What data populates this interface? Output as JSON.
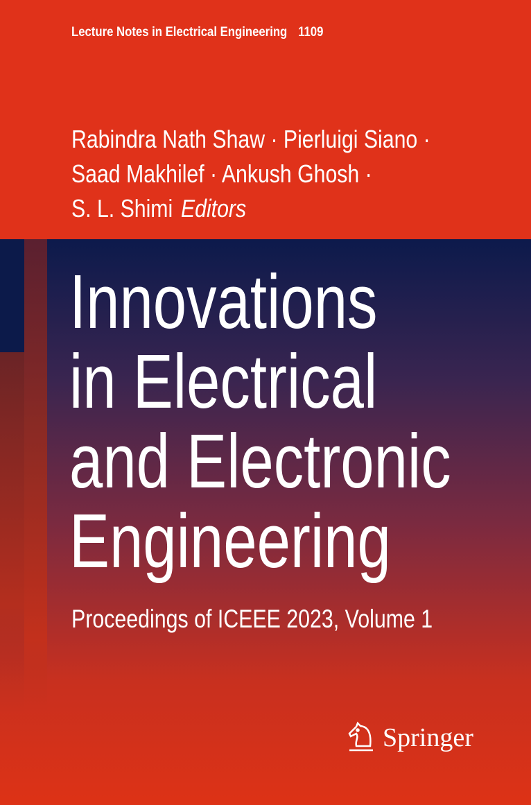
{
  "series": {
    "name": "Lecture Notes in Electrical Engineering",
    "number": "1109"
  },
  "authors": {
    "lines": [
      "Rabindra Nath Shaw · Pierluigi Siano ·",
      "Saad Makhilef · Ankush Ghosh ·",
      "S. L. Shimi"
    ],
    "role": "Editors"
  },
  "title": {
    "lines": [
      "Innovations",
      "in Electrical",
      "and Electronic",
      "Engineering"
    ]
  },
  "subtitle": "Proceedings of ICEEE 2023, Volume 1",
  "publisher": {
    "name": "Springer",
    "icon": "knight-horse-icon"
  },
  "colors": {
    "red": "#e0321a",
    "navy": "#0c1a4c"
  }
}
